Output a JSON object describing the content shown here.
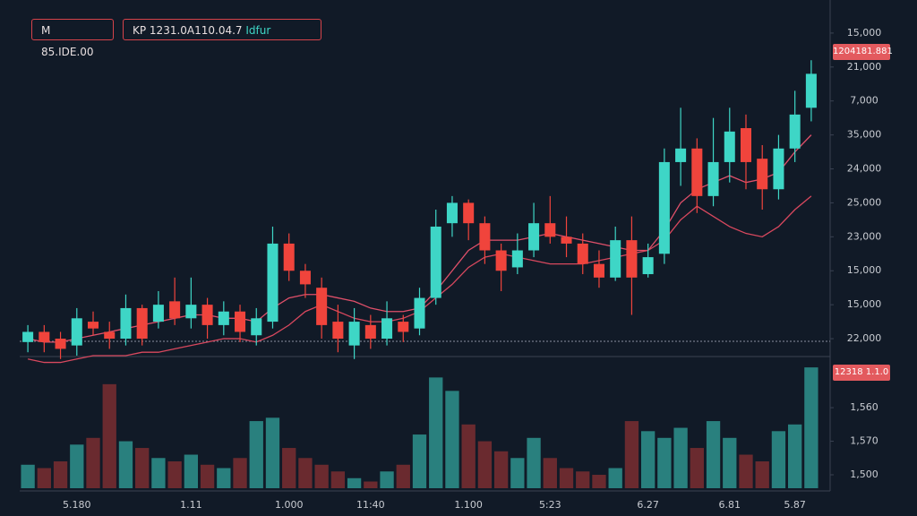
{
  "header": {
    "symbol": "M 85.IDE.00",
    "info": "KP 1231.0A110.04.7",
    "mode": "Idfur"
  },
  "price_tag": "1204181.881",
  "volume_tag": "12318 1.1.0",
  "chart_data": {
    "type": "candlestick",
    "categories": [
      null,
      null,
      null,
      "5.180",
      null,
      null,
      null,
      null,
      null,
      null,
      "1.11",
      null,
      null,
      null,
      null,
      null,
      "1.000",
      null,
      null,
      null,
      null,
      "11:40",
      null,
      null,
      null,
      null,
      null,
      "1.100",
      null,
      null,
      null,
      null,
      "5:23",
      null,
      null,
      null,
      null,
      null,
      "6.27",
      null,
      null,
      null,
      null,
      "6.81",
      null,
      null,
      null,
      "5.87",
      null
    ],
    "open": [
      0.9,
      1.2,
      1.0,
      0.8,
      1.5,
      1.2,
      1.0,
      1.9,
      1.5,
      2.1,
      1.6,
      2.0,
      1.4,
      1.8,
      1.1,
      1.5,
      3.8,
      3.0,
      2.5,
      1.5,
      0.8,
      1.4,
      1.0,
      1.5,
      1.3,
      2.2,
      4.4,
      5.0,
      4.4,
      3.6,
      3.1,
      3.6,
      4.4,
      4.0,
      3.8,
      3.2,
      2.8,
      3.9,
      2.9,
      3.5,
      6.2,
      6.6,
      5.2,
      6.2,
      7.2,
      6.3,
      5.4,
      6.6,
      7.8
    ],
    "high": [
      1.4,
      1.4,
      1.2,
      1.9,
      1.8,
      1.5,
      2.3,
      2.0,
      2.4,
      2.8,
      2.8,
      2.2,
      2.1,
      2.0,
      1.9,
      4.3,
      4.1,
      3.2,
      2.8,
      2.0,
      1.9,
      1.7,
      2.1,
      1.7,
      2.5,
      4.8,
      5.2,
      5.1,
      4.6,
      3.8,
      4.1,
      5.0,
      5.2,
      4.6,
      4.1,
      3.6,
      4.3,
      4.6,
      3.8,
      6.6,
      7.8,
      6.9,
      7.5,
      7.8,
      7.6,
      6.7,
      7.0,
      8.3,
      9.2
    ],
    "low": [
      0.6,
      0.6,
      0.4,
      0.5,
      1.1,
      0.7,
      0.8,
      0.8,
      1.3,
      1.4,
      1.3,
      1.0,
      1.1,
      0.9,
      0.8,
      1.3,
      2.7,
      2.2,
      1.0,
      0.6,
      0.4,
      0.7,
      0.8,
      0.9,
      1.1,
      2.0,
      4.0,
      3.9,
      3.2,
      2.4,
      2.9,
      3.4,
      3.8,
      3.4,
      2.9,
      2.5,
      2.7,
      1.7,
      2.8,
      3.2,
      5.5,
      4.7,
      4.9,
      5.6,
      5.4,
      4.8,
      5.1,
      6.2,
      7.4
    ],
    "close": [
      1.2,
      0.9,
      0.7,
      1.6,
      1.3,
      1.0,
      1.9,
      1.0,
      2.0,
      1.6,
      2.0,
      1.4,
      1.8,
      1.2,
      1.6,
      3.8,
      3.0,
      2.6,
      1.4,
      1.0,
      1.5,
      1.0,
      1.6,
      1.2,
      2.2,
      4.3,
      5.0,
      4.4,
      3.6,
      3.0,
      3.6,
      4.4,
      4.0,
      3.8,
      3.2,
      2.8,
      3.9,
      2.8,
      3.4,
      6.2,
      6.6,
      5.2,
      6.2,
      7.1,
      6.2,
      5.4,
      6.6,
      7.6,
      8.8
    ],
    "volume": [
      1.3,
      1.2,
      1.4,
      1.9,
      2.1,
      3.7,
      2.0,
      1.8,
      1.5,
      1.4,
      1.6,
      1.3,
      1.2,
      1.5,
      2.6,
      2.7,
      1.8,
      1.5,
      1.3,
      1.1,
      0.9,
      0.8,
      1.1,
      1.3,
      2.2,
      3.9,
      3.5,
      2.5,
      2.0,
      1.7,
      1.5,
      2.1,
      1.5,
      1.2,
      1.1,
      1.0,
      1.2,
      2.6,
      2.3,
      2.1,
      2.4,
      1.8,
      2.6,
      2.1,
      1.6,
      1.4,
      2.3,
      2.5,
      4.2
    ],
    "overlays": [
      {
        "color": "#e0506a",
        "values": [
          1.0,
          0.9,
          0.9,
          1.0,
          1.1,
          1.2,
          1.3,
          1.4,
          1.5,
          1.6,
          1.7,
          1.7,
          1.6,
          1.6,
          1.5,
          1.9,
          2.2,
          2.3,
          2.3,
          2.2,
          2.1,
          1.9,
          1.8,
          1.8,
          1.9,
          2.4,
          3.0,
          3.6,
          3.9,
          3.9,
          3.9,
          4.0,
          4.1,
          4.0,
          3.9,
          3.8,
          3.7,
          3.6,
          3.6,
          4.2,
          5.0,
          5.4,
          5.6,
          5.8,
          5.6,
          5.7,
          5.9,
          6.5,
          7.0
        ]
      },
      {
        "color": "#d8485e",
        "values": [
          0.4,
          0.3,
          0.3,
          0.4,
          0.5,
          0.5,
          0.5,
          0.6,
          0.6,
          0.7,
          0.8,
          0.9,
          1.0,
          1.0,
          0.9,
          1.1,
          1.4,
          1.8,
          2.0,
          1.8,
          1.6,
          1.5,
          1.5,
          1.6,
          1.8,
          2.2,
          2.6,
          3.1,
          3.4,
          3.5,
          3.4,
          3.3,
          3.2,
          3.2,
          3.2,
          3.3,
          3.4,
          3.5,
          3.6,
          3.9,
          4.5,
          4.9,
          4.6,
          4.3,
          4.1,
          4.0,
          4.3,
          4.8,
          5.2
        ]
      }
    ],
    "up_color": "#3ed6c6",
    "down_color": "#f0443c",
    "ylim": [
      0.5,
      11
    ],
    "yticks": [
      {
        "value": 10,
        "label": "15,000"
      },
      {
        "value": 9,
        "label": "21,000"
      },
      {
        "value": 8,
        "label": "7,000"
      },
      {
        "value": 7,
        "label": "35,000"
      },
      {
        "value": 6,
        "label": "24,000"
      },
      {
        "value": 5,
        "label": "25,000"
      },
      {
        "value": 4,
        "label": "23,000"
      },
      {
        "value": 3,
        "label": "15,000"
      },
      {
        "value": 2,
        "label": "15,000"
      },
      {
        "value": 1,
        "label": "22,000"
      }
    ],
    "volume_ylim": [
      0.6,
      4.47
    ],
    "volume_yticks": [
      {
        "value": 3,
        "label": "1,560"
      },
      {
        "value": 2,
        "label": "1,570"
      },
      {
        "value": 1,
        "label": "1,500"
      }
    ]
  }
}
